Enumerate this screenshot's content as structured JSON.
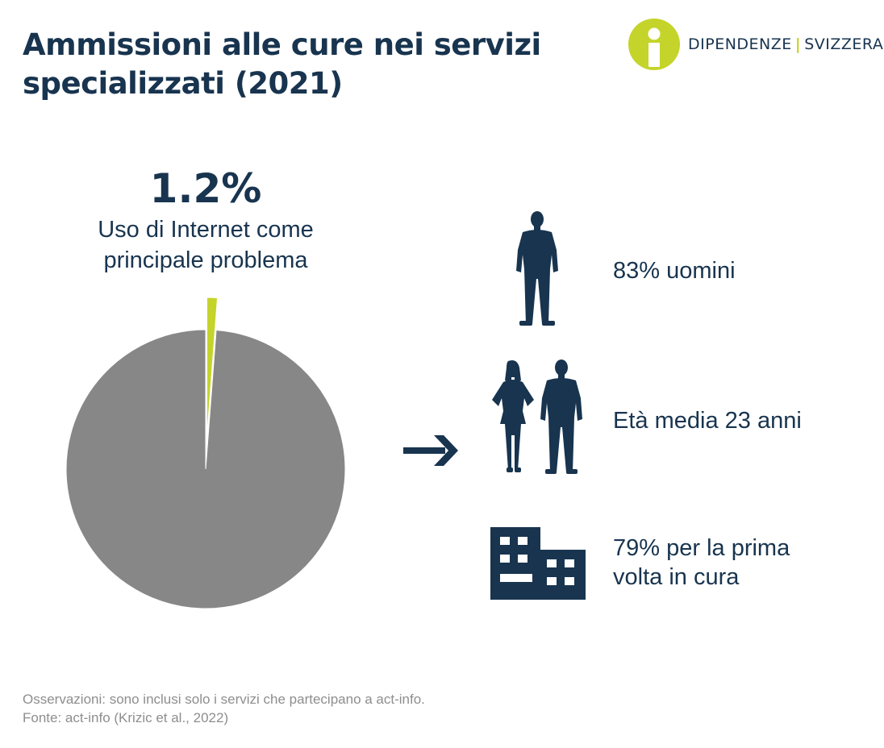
{
  "title": "Ammissioni alle cure nei servizi specializzati (2021)",
  "logo": {
    "left": "DIPENDENZE",
    "separator": "|",
    "right": "SVIZZERA",
    "icon": "person-info-icon"
  },
  "chart_data": {
    "type": "pie",
    "slices": [
      {
        "label": "Uso di Internet come principale problema",
        "value": 1.2,
        "display": "1.2%",
        "color": "#c4d42a",
        "exploded": true
      },
      {
        "label": "",
        "value": 98.8,
        "color": "#878787"
      }
    ]
  },
  "highlight": {
    "value": "1.2%",
    "label_line1": "Uso di Internet come",
    "label_line2": "principale problema"
  },
  "arrow_icon": "arrow-right-icon",
  "stats": [
    {
      "icon": "man-silhouette-icon",
      "text": "83% uomini"
    },
    {
      "icon": "woman-man-silhouette-icon",
      "text": "Età media 23 anni"
    },
    {
      "icon": "building-icon",
      "line1": "79% per la prima",
      "line2": "volta in cura"
    }
  ],
  "colors": {
    "navy": "#18344f",
    "lime": "#c4d42a",
    "gray": "#878787",
    "footnote": "#8e8e8e"
  },
  "footnote": {
    "line1": "Osservazioni: sono inclusi solo i servizi che partecipano a act-info.",
    "line2": "Fonte: act-info (Krizic et al., 2022)"
  }
}
